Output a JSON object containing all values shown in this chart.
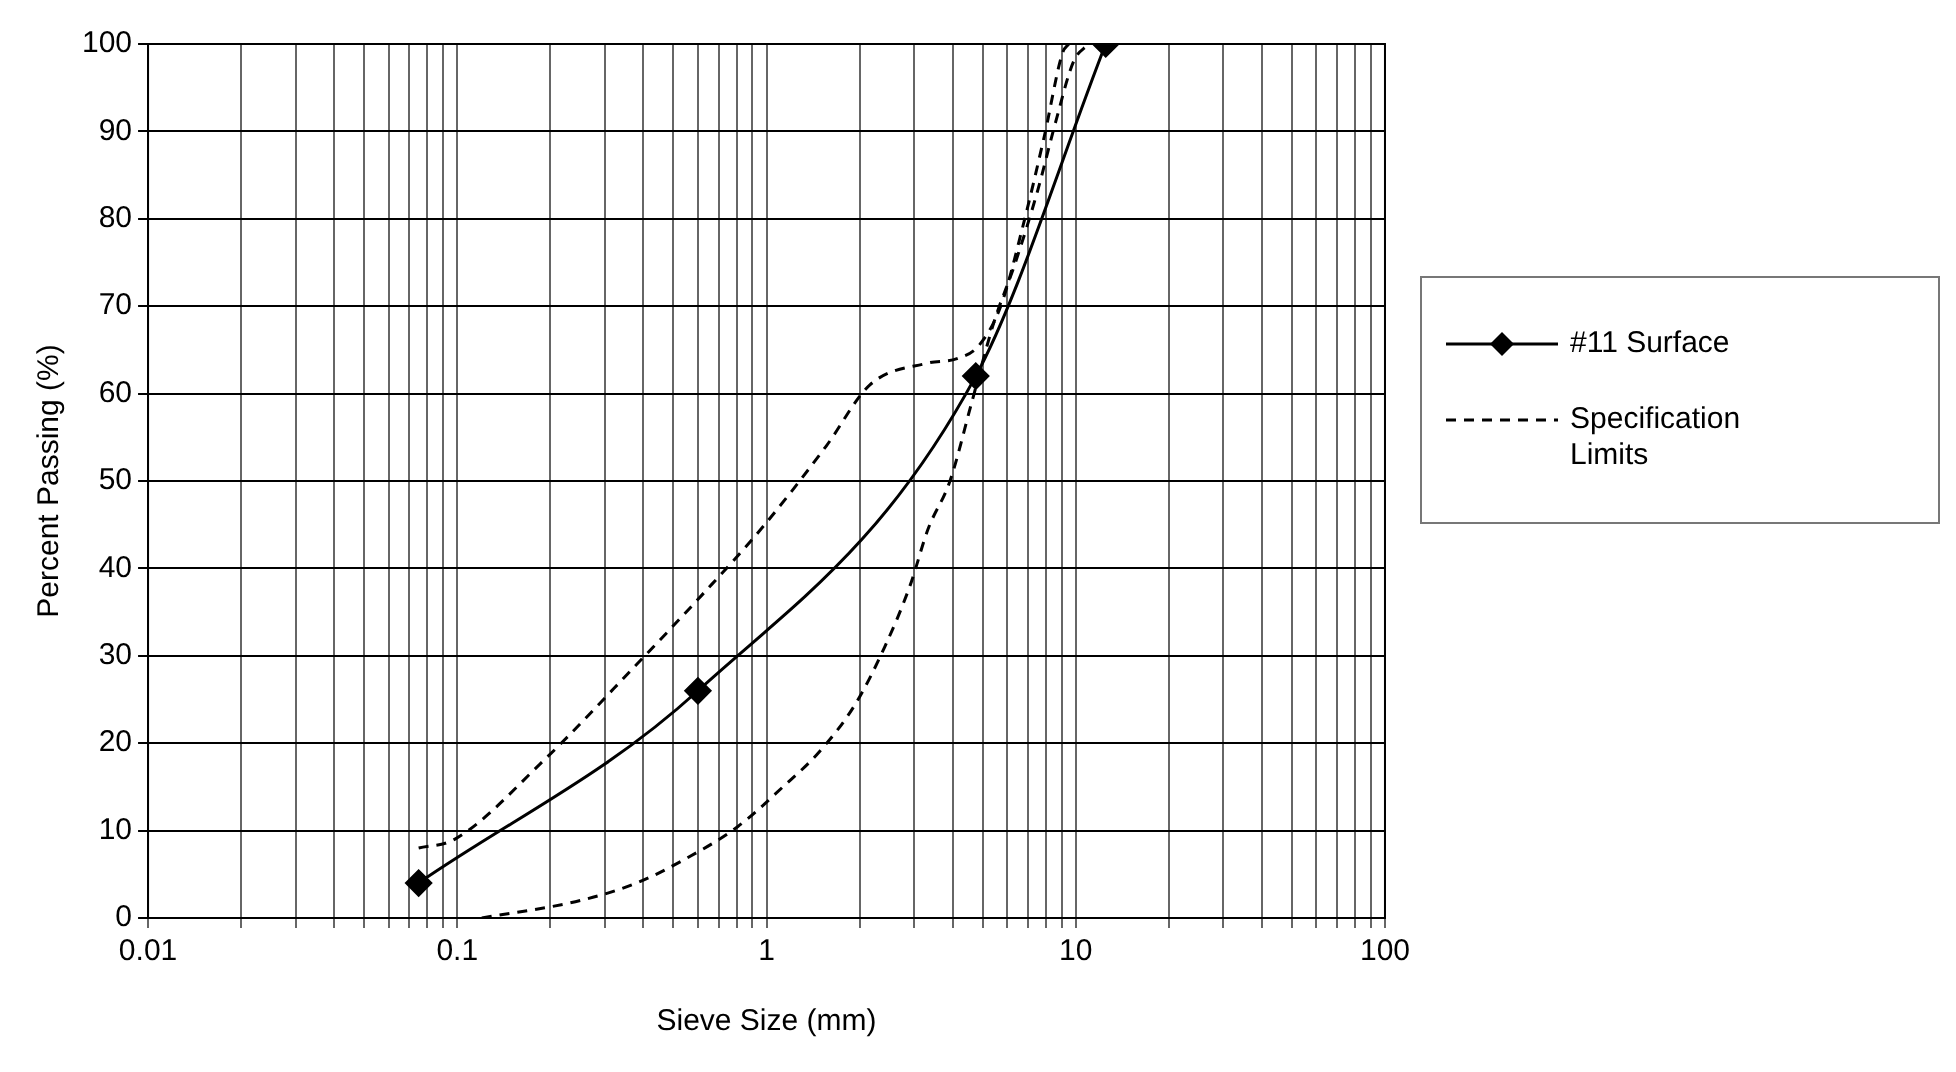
{
  "chart_data": {
    "type": "line",
    "xlabel": "Sieve Size (mm)",
    "ylabel": "Percent Passing (%)",
    "log": "x",
    "xlim": [
      0.01,
      100
    ],
    "ylim": [
      0,
      100
    ],
    "xticks": [
      0.01,
      {
        "value": 0.02,
        "label": null
      },
      {
        "value": 0.03,
        "label": null
      },
      {
        "value": 0.04,
        "label": null
      },
      {
        "value": 0.05,
        "label": null
      },
      {
        "value": 0.06,
        "label": null
      },
      {
        "value": 0.07,
        "label": null
      },
      {
        "value": 0.08,
        "label": null
      },
      {
        "value": 0.09,
        "label": null
      },
      0.1,
      {
        "value": 0.2,
        "label": null
      },
      {
        "value": 0.3,
        "label": null
      },
      {
        "value": 0.4,
        "label": null
      },
      {
        "value": 0.5,
        "label": null
      },
      {
        "value": 0.6,
        "label": null
      },
      {
        "value": 0.7,
        "label": null
      },
      {
        "value": 0.8,
        "label": null
      },
      {
        "value": 0.9,
        "label": null
      },
      1,
      {
        "value": 2,
        "label": null
      },
      {
        "value": 3,
        "label": null
      },
      {
        "value": 4,
        "label": null
      },
      {
        "value": 5,
        "label": null
      },
      {
        "value": 6,
        "label": null
      },
      {
        "value": 7,
        "label": null
      },
      {
        "value": 8,
        "label": null
      },
      {
        "value": 9,
        "label": null
      },
      10,
      {
        "value": 20,
        "label": null
      },
      {
        "value": 30,
        "label": null
      },
      {
        "value": 40,
        "label": null
      },
      {
        "value": 50,
        "label": null
      },
      {
        "value": 60,
        "label": null
      },
      {
        "value": 70,
        "label": null
      },
      {
        "value": 80,
        "label": null
      },
      {
        "value": 90,
        "label": null
      },
      100
    ],
    "yticks": [
      0,
      10,
      20,
      30,
      40,
      50,
      60,
      70,
      80,
      90,
      100
    ],
    "grid": true,
    "legend": "right",
    "series": [
      {
        "name": "#11 Surface",
        "color": "#000000",
        "marker": "diamond",
        "line_style": "solid",
        "x": [
          0.075,
          0.6,
          4.75,
          12.5
        ],
        "values": [
          4,
          26,
          62,
          100
        ]
      },
      {
        "name": "Specification Limits",
        "color": "#000000",
        "marker": "none",
        "line_style": "dashed",
        "x": [
          0.075,
          0.098,
          0.19,
          0.38,
          0.62,
          0.96,
          1.56,
          2.16,
          3.33,
          4.13,
          4.86,
          5.72,
          6.73,
          7.92,
          9.07,
          9.5
        ],
        "values": [
          8,
          9,
          18,
          29,
          37,
          44.5,
          54,
          61,
          63.5,
          64,
          65.5,
          70,
          79,
          89.5,
          99,
          100
        ]
      },
      {
        "color": "#000000",
        "marker": "none",
        "line_style": "dashed",
        "x": [
          0.12,
          0.25,
          0.38,
          0.53,
          0.81,
          1.13,
          1.48,
          1.94,
          2.41,
          2.91,
          3.33,
          3.92,
          4.61,
          5.42,
          6.38,
          7.5,
          8.6,
          9.84,
          11
        ],
        "values": [
          0,
          2,
          4,
          6.5,
          10.5,
          15,
          19,
          24.5,
          31,
          38,
          44.5,
          50,
          59,
          68,
          75,
          83,
          91,
          98,
          100
        ]
      }
    ]
  }
}
